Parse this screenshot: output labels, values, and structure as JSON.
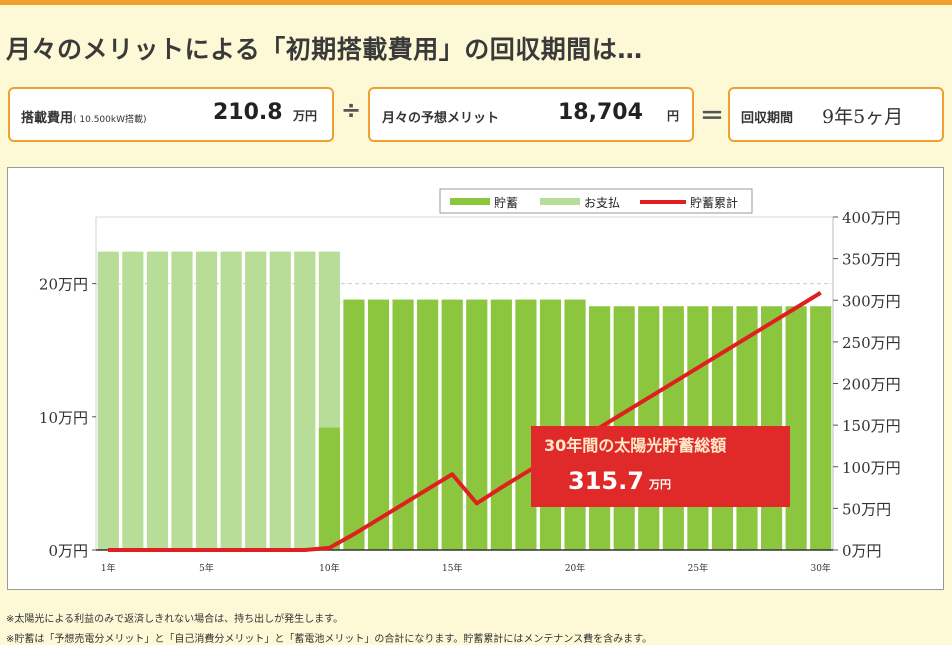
{
  "heading": "月々のメリットによる「初期搭載費用」の回収期間は…",
  "summary": {
    "cost_label": "搭載費用",
    "cost_sub": "( 10.500kW搭載)",
    "cost_value": "210.8",
    "cost_unit": "万円",
    "divide_sign": "÷",
    "monthly_label": "月々の予想メリット",
    "monthly_value": "18,704",
    "monthly_unit": "円",
    "equals_sign": "＝",
    "period_label": "回収期間",
    "period_value": "9年5ヶ月"
  },
  "chart_data": {
    "type": "bar",
    "x": [
      1,
      2,
      3,
      4,
      5,
      6,
      7,
      8,
      9,
      10,
      11,
      12,
      13,
      14,
      15,
      16,
      17,
      18,
      19,
      20,
      21,
      22,
      23,
      24,
      25,
      26,
      27,
      28,
      29,
      30
    ],
    "x_tick_labels": [
      "1年",
      "5年",
      "10年",
      "15年",
      "20年",
      "25年",
      "30年"
    ],
    "x_tick_values": [
      1,
      5,
      10,
      15,
      20,
      25,
      30
    ],
    "series": [
      {
        "name": "貯蓄",
        "type": "bar",
        "axis": "left",
        "color": "#8cc63f",
        "values": [
          0,
          0,
          0,
          0,
          0,
          0,
          0,
          0,
          0,
          9.2,
          18.8,
          18.8,
          18.8,
          18.8,
          18.8,
          18.8,
          18.8,
          18.8,
          18.8,
          18.8,
          18.3,
          18.3,
          18.3,
          18.3,
          18.3,
          18.3,
          18.3,
          18.3,
          18.3,
          18.3
        ]
      },
      {
        "name": "お支払",
        "type": "bar",
        "axis": "left",
        "color": "#b8dd98",
        "values": [
          22.4,
          22.4,
          22.4,
          22.4,
          22.4,
          22.4,
          22.4,
          22.4,
          22.4,
          13.2,
          0,
          0,
          0,
          0,
          0,
          0,
          0,
          0,
          0,
          0,
          0,
          0,
          0,
          0,
          0,
          0,
          0,
          0,
          0,
          0
        ]
      },
      {
        "name": "貯蓄累計",
        "type": "line",
        "axis": "right",
        "color": "#e0201e",
        "values": [
          0,
          0,
          0,
          0,
          0,
          0,
          0,
          0,
          0,
          2.5,
          19,
          37,
          55,
          73,
          91,
          56,
          75,
          93,
          111,
          129,
          147,
          165,
          183,
          201,
          219,
          237,
          255,
          273,
          291,
          309
        ]
      }
    ],
    "y_left": {
      "ticks": [
        "0万円",
        "10万円",
        "20万円"
      ],
      "tick_values": [
        0,
        10,
        20
      ],
      "range": [
        0,
        25
      ]
    },
    "y_right": {
      "ticks": [
        "0万円",
        "50万円",
        "100万円",
        "150万円",
        "200万円",
        "250万円",
        "300万円",
        "350万円",
        "400万円"
      ],
      "tick_values": [
        0,
        50,
        100,
        150,
        200,
        250,
        300,
        350,
        400
      ],
      "range": [
        0,
        400
      ]
    },
    "grid": "dashed at left 20",
    "legend": "top-center",
    "callout": {
      "title": "30年間の太陽光貯蓄総額",
      "value": "315.7",
      "unit": "万円"
    }
  },
  "notes": [
    "※太陽光による利益のみで返済しきれない場合は、持ち出しが発生します。",
    "※貯蓄は「予想売電分メリット」と「自己消費分メリット」と「蓄電池メリット」の合計になります。貯蓄累計にはメンテナンス費を含みます。"
  ]
}
